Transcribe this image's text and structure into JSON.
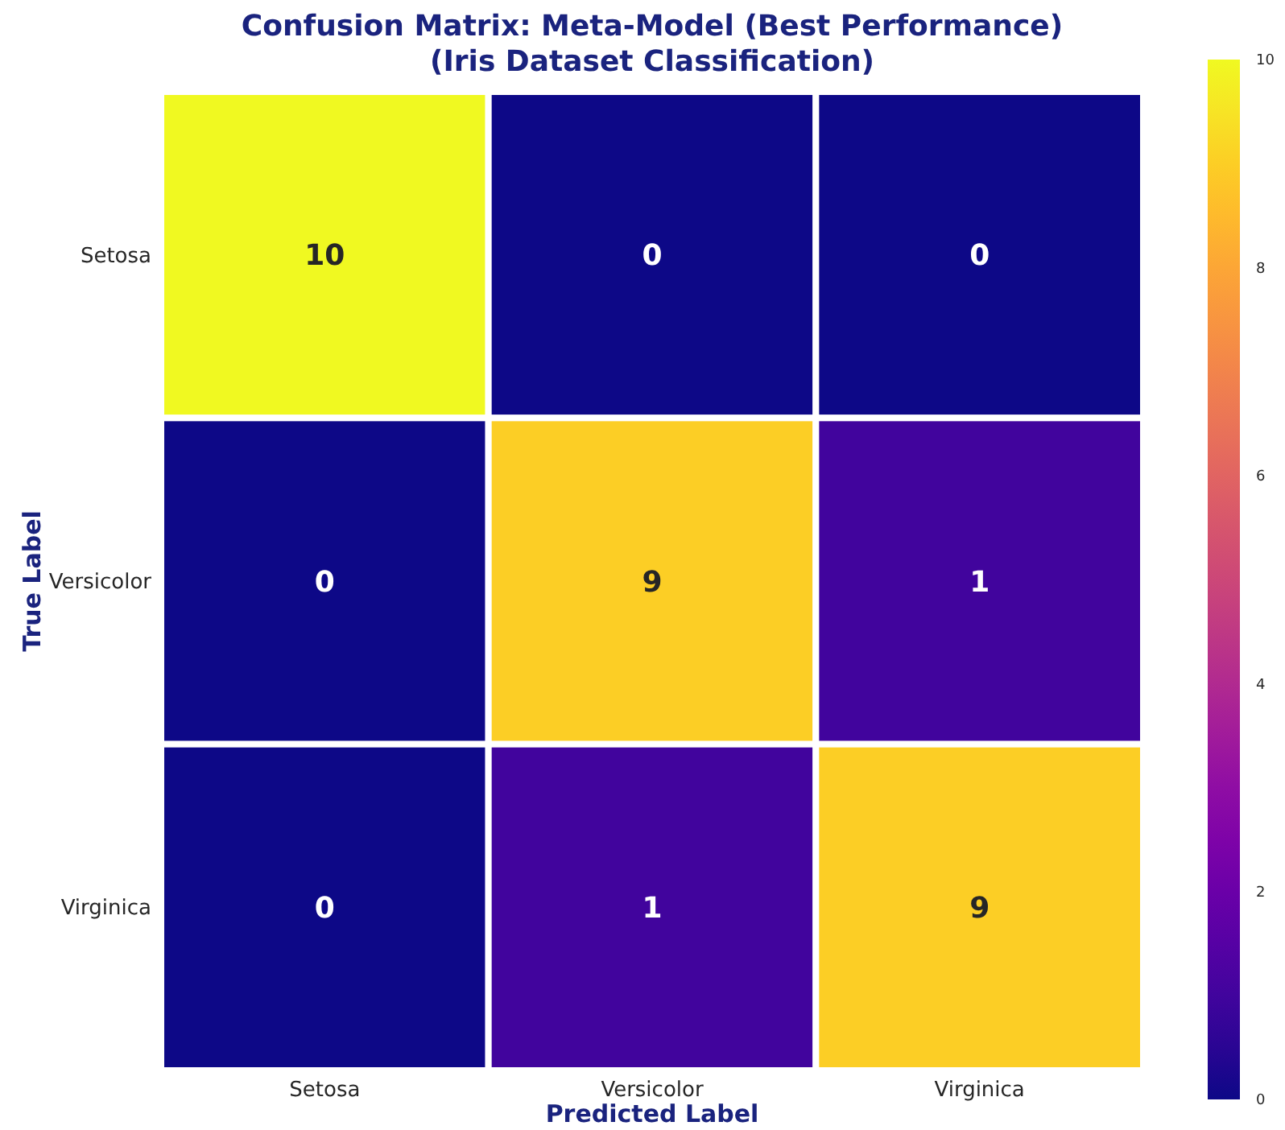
{
  "chart_data": {
    "type": "heatmap",
    "title": "Confusion Matrix: Meta-Model (Best Performance)\n(Iris Dataset Classification)",
    "xlabel": "Predicted Label",
    "ylabel": "True Label",
    "categories": [
      "Setosa",
      "Versicolor",
      "Virginica"
    ],
    "y_categories": [
      "Setosa",
      "Versicolor",
      "Virginica"
    ],
    "cells": [
      [
        10,
        0,
        0
      ],
      [
        0,
        9,
        1
      ],
      [
        0,
        1,
        9
      ]
    ],
    "clim": [
      0,
      10
    ],
    "cticks": [
      0,
      2,
      4,
      6,
      8,
      10
    ],
    "data_labels": true
  }
}
